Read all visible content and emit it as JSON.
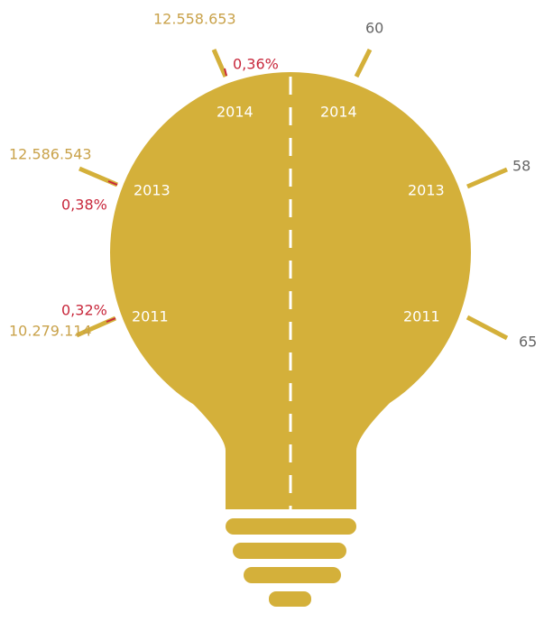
{
  "left": [
    {
      "year": "2014",
      "value": "12.558.653",
      "percent": "0,36%"
    },
    {
      "year": "2013",
      "value": "12.586.543",
      "percent": "0,38%"
    },
    {
      "year": "2011",
      "value": "10.279.114",
      "percent": "0,32%"
    }
  ],
  "right": [
    {
      "year": "2014",
      "value": 60
    },
    {
      "year": "2013",
      "value": 58
    },
    {
      "year": "2011",
      "value": 65
    }
  ]
}
